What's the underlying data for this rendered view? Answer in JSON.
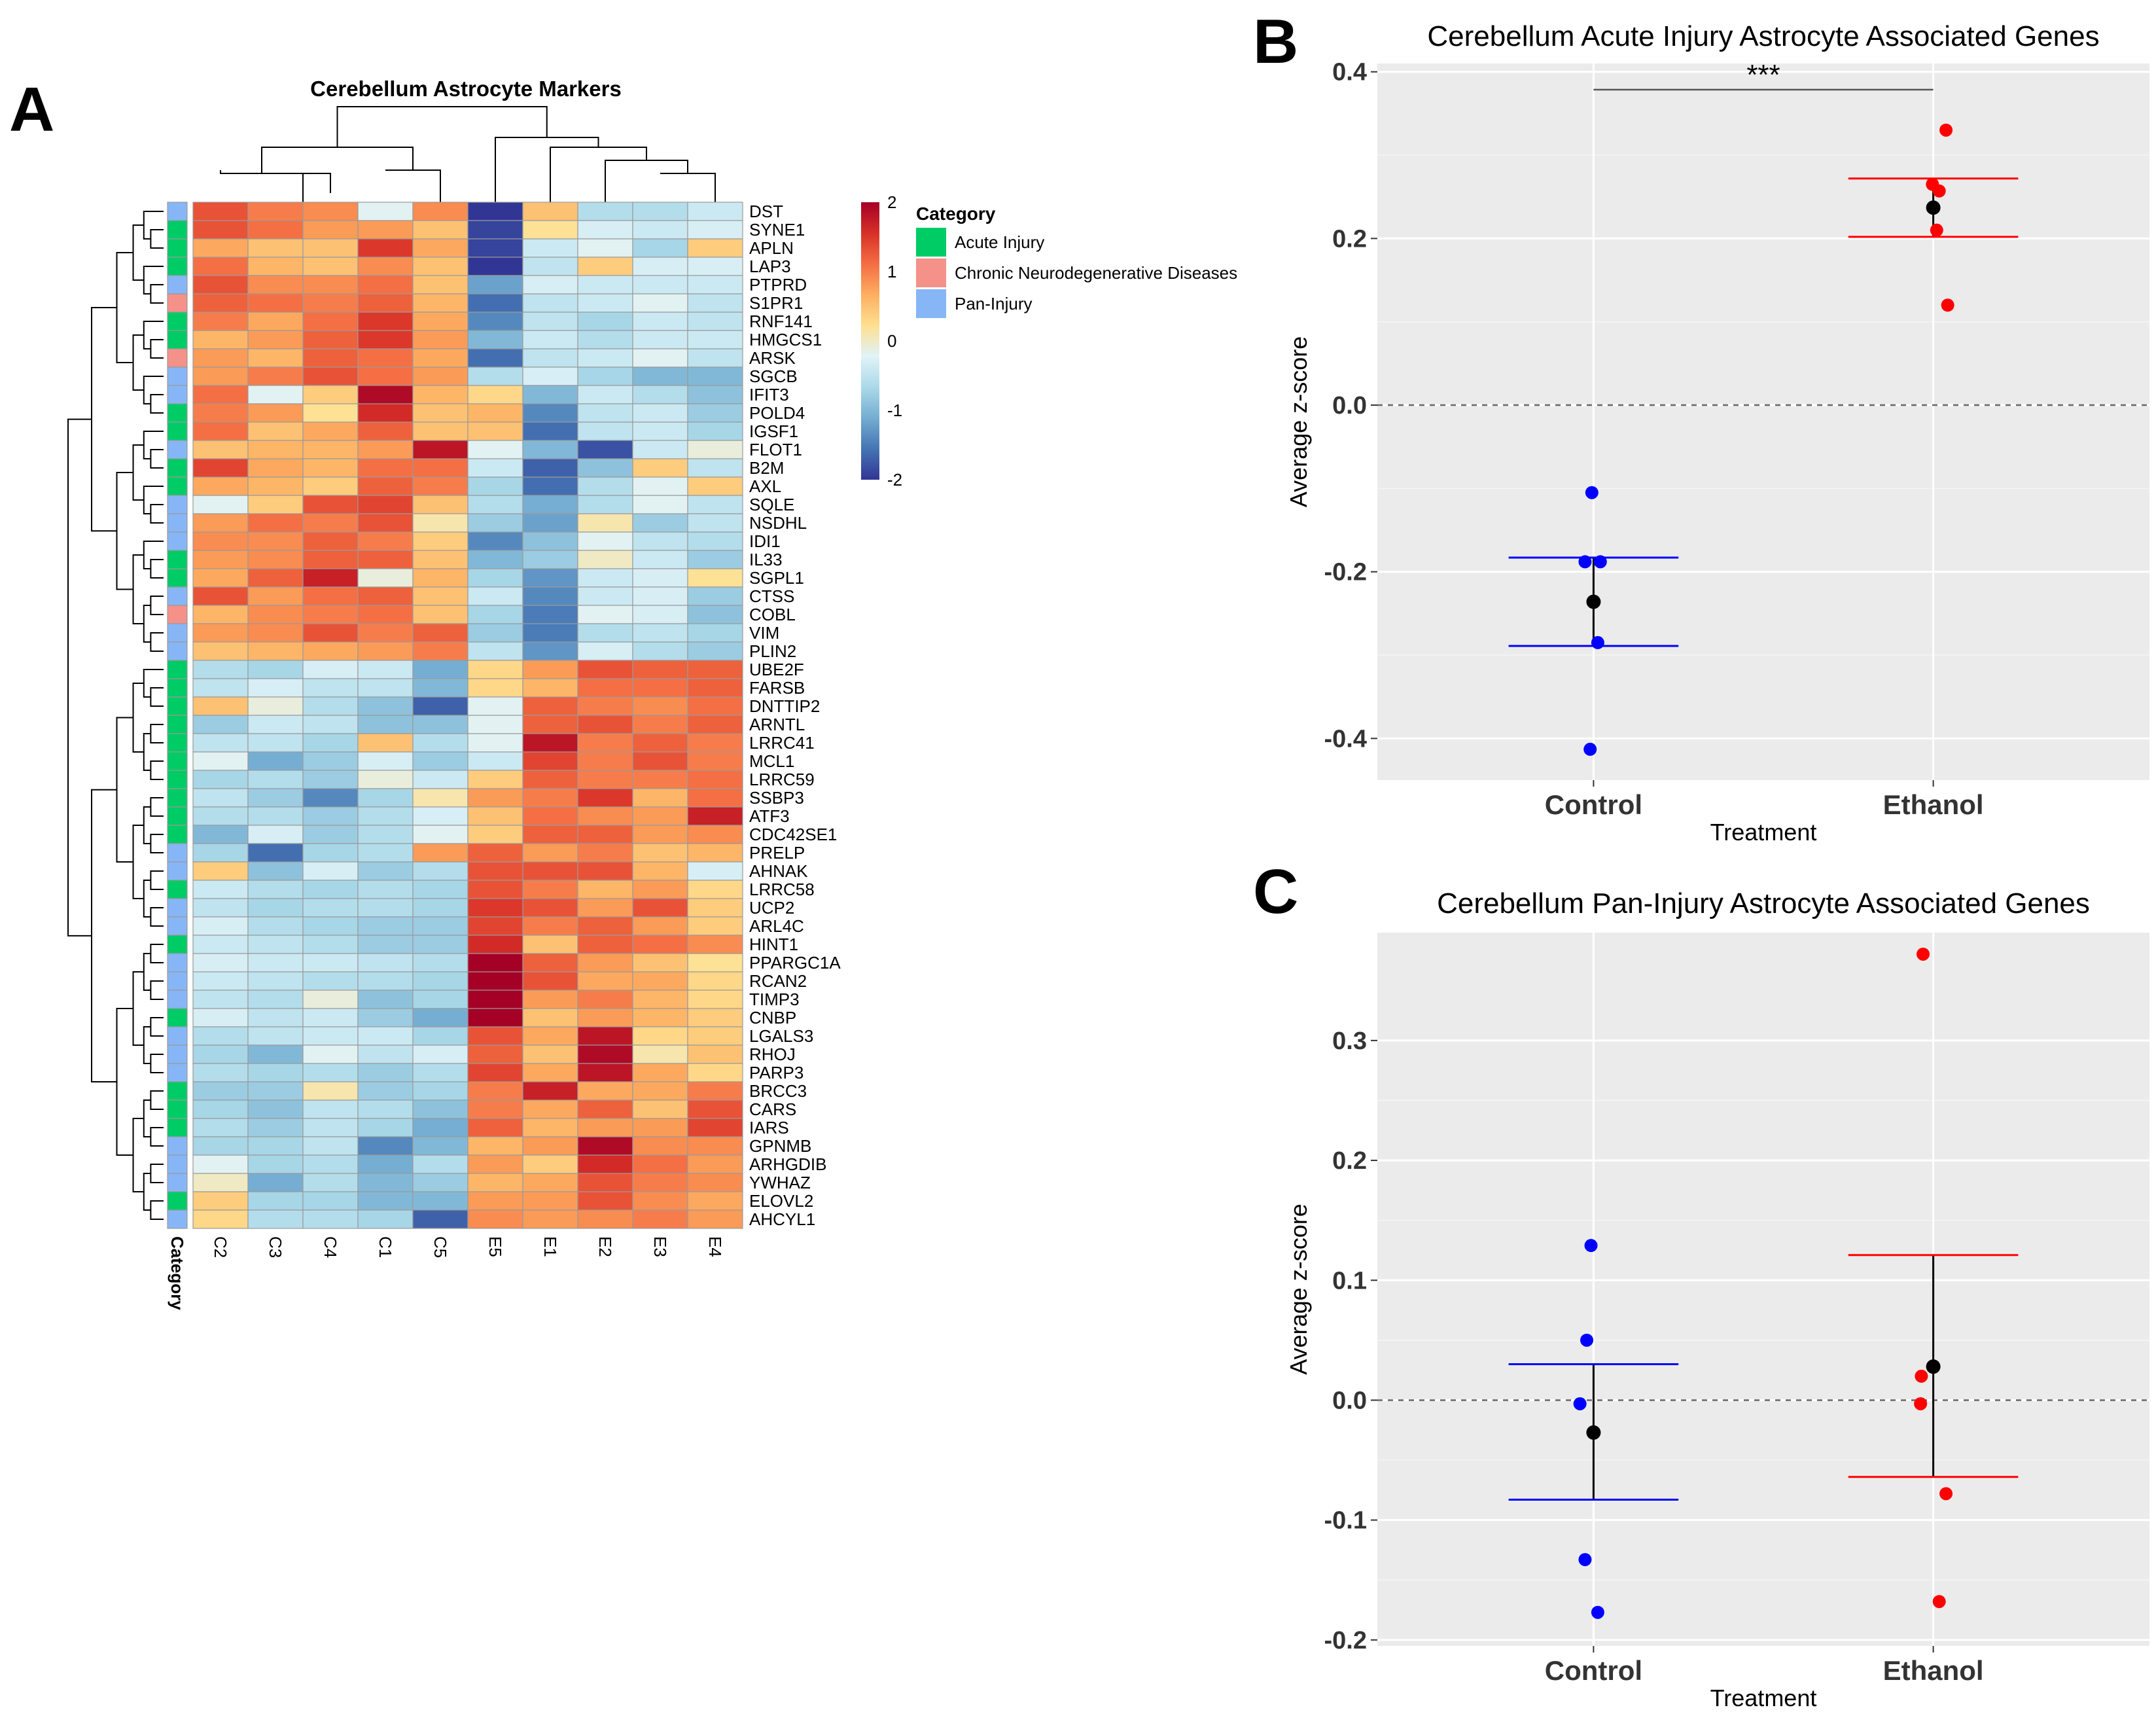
{
  "panel_labels": {
    "a": "A",
    "b": "B",
    "c": "C"
  },
  "chart_data": [
    {
      "type": "heatmap",
      "title": "Cerebellum Astrocyte Markers",
      "columns": [
        "C2",
        "C3",
        "C4",
        "C1",
        "C5",
        "E5",
        "E1",
        "E2",
        "E3",
        "E4"
      ],
      "category_axis_label": "Category",
      "rows": [
        "DST",
        "SYNE1",
        "APLN",
        "LAP3",
        "PTPRD",
        "S1PR1",
        "RNF141",
        "HMGCS1",
        "ARSK",
        "SGCB",
        "IFIT3",
        "POLD4",
        "IGSF1",
        "FLOT1",
        "B2M",
        "AXL",
        "SQLE",
        "NSDHL",
        "IDI1",
        "IL33",
        "SGPL1",
        "CTSS",
        "COBL",
        "VIM",
        "PLIN2",
        "UBE2F",
        "FARSB",
        "DNTTIP2",
        "ARNTL",
        "LRRC41",
        "MCL1",
        "LRRC59",
        "SSBP3",
        "ATF3",
        "CDC42SE1",
        "PRELP",
        "AHNAK",
        "LRRC58",
        "UCP2",
        "ARL4C",
        "HINT1",
        "PPARGC1A",
        "RCAN2",
        "TIMP3",
        "CNBP",
        "LGALS3",
        "RHOJ",
        "PARP3",
        "BRCC3",
        "CARS",
        "IARS",
        "GPNMB",
        "ARHGDIB",
        "YWHAZ",
        "ELOVL2",
        "AHCYL1"
      ],
      "row_category": [
        "P",
        "A",
        "A",
        "A",
        "P",
        "C",
        "A",
        "A",
        "C",
        "P",
        "P",
        "A",
        "A",
        "P",
        "A",
        "A",
        "P",
        "P",
        "P",
        "A",
        "A",
        "P",
        "C",
        "P",
        "P",
        "A",
        "A",
        "A",
        "A",
        "A",
        "A",
        "A",
        "A",
        "A",
        "A",
        "P",
        "P",
        "A",
        "P",
        "P",
        "A",
        "P",
        "P",
        "P",
        "A",
        "P",
        "P",
        "P",
        "A",
        "A",
        "A",
        "P",
        "P",
        "P",
        "A",
        "P"
      ],
      "values": [
        [
          1.3,
          1.0,
          0.9,
          -0.2,
          0.9,
          -2.0,
          0.5,
          -0.6,
          -0.6,
          -0.4
        ],
        [
          1.3,
          1.1,
          0.8,
          0.8,
          0.5,
          -1.9,
          0.2,
          -0.3,
          -0.4,
          -0.3
        ],
        [
          0.7,
          0.5,
          0.5,
          1.5,
          0.7,
          -1.9,
          -0.4,
          -0.2,
          -0.7,
          0.4
        ],
        [
          1.1,
          0.6,
          0.5,
          0.9,
          0.5,
          -2.1,
          -0.5,
          0.4,
          -0.3,
          -0.3
        ],
        [
          1.3,
          0.9,
          0.9,
          1.1,
          0.5,
          -1.2,
          -0.3,
          -0.4,
          -0.4,
          -0.4
        ],
        [
          1.2,
          1.1,
          1.0,
          1.2,
          0.6,
          -1.6,
          -0.5,
          -0.4,
          -0.2,
          -0.5
        ],
        [
          1.0,
          0.7,
          1.1,
          1.5,
          0.7,
          -1.4,
          -0.5,
          -0.7,
          -0.4,
          -0.5
        ],
        [
          0.6,
          0.8,
          1.2,
          1.5,
          0.8,
          -1.0,
          -0.4,
          -0.6,
          -0.4,
          -0.4
        ],
        [
          0.8,
          0.6,
          1.2,
          1.1,
          0.7,
          -1.6,
          -0.5,
          -0.4,
          -0.2,
          -0.5
        ],
        [
          0.8,
          1.0,
          1.3,
          1.1,
          0.8,
          -0.6,
          -0.3,
          -0.7,
          -1.0,
          -1.0
        ],
        [
          1.1,
          -0.2,
          0.4,
          1.9,
          0.6,
          0.3,
          -1.0,
          -0.4,
          -0.6,
          -0.9
        ],
        [
          1.0,
          0.8,
          0.2,
          1.6,
          0.5,
          0.6,
          -1.4,
          -0.5,
          -0.4,
          -0.8
        ],
        [
          1.1,
          0.5,
          0.7,
          1.2,
          0.5,
          0.5,
          -1.6,
          -0.5,
          -0.4,
          -0.7
        ],
        [
          0.5,
          0.6,
          0.6,
          0.8,
          1.8,
          -0.2,
          -1.0,
          -1.8,
          -0.4,
          -0.1
        ],
        [
          1.4,
          0.7,
          0.6,
          1.1,
          1.1,
          -0.4,
          -1.7,
          -0.9,
          0.4,
          -0.5
        ],
        [
          0.7,
          0.6,
          0.4,
          1.2,
          1.0,
          -0.7,
          -1.6,
          -0.6,
          -0.2,
          0.4
        ],
        [
          -0.2,
          0.4,
          1.3,
          1.4,
          0.5,
          -0.6,
          -1.1,
          -0.6,
          -0.2,
          -0.5
        ],
        [
          0.8,
          1.1,
          1.0,
          1.3,
          0.1,
          -0.8,
          -1.2,
          0.1,
          -0.8,
          -0.5
        ],
        [
          0.9,
          0.9,
          1.2,
          1.0,
          0.4,
          -1.4,
          -0.9,
          -0.2,
          -0.5,
          -0.6
        ],
        [
          0.8,
          0.9,
          1.2,
          1.2,
          0.5,
          -1.0,
          -0.8,
          0.0,
          -0.4,
          -0.8
        ],
        [
          0.7,
          1.2,
          1.7,
          -0.1,
          0.6,
          -0.7,
          -1.3,
          -0.4,
          -0.3,
          0.2
        ],
        [
          1.3,
          0.8,
          1.1,
          1.2,
          0.5,
          -0.4,
          -1.4,
          -0.4,
          -0.3,
          -0.8
        ],
        [
          0.6,
          0.9,
          1.0,
          1.1,
          0.5,
          -0.7,
          -1.5,
          -0.2,
          -0.3,
          -0.9
        ],
        [
          0.8,
          0.9,
          1.3,
          1.0,
          1.2,
          -0.8,
          -1.5,
          -0.6,
          -0.5,
          -0.7
        ],
        [
          0.5,
          0.6,
          0.7,
          0.8,
          1.0,
          -0.5,
          -1.3,
          -0.3,
          -0.6,
          -0.8
        ],
        [
          -0.6,
          -0.7,
          -0.3,
          -0.4,
          -1.1,
          0.3,
          0.8,
          1.3,
          1.2,
          1.2
        ],
        [
          -0.5,
          -0.3,
          -0.5,
          -0.5,
          -1.0,
          0.3,
          0.6,
          1.1,
          1.1,
          1.2
        ],
        [
          0.5,
          -0.1,
          -0.6,
          -0.9,
          -1.7,
          -0.2,
          1.2,
          1.0,
          0.9,
          1.1
        ],
        [
          -0.8,
          -0.4,
          -0.5,
          -0.9,
          -0.9,
          -0.2,
          1.2,
          1.3,
          1.0,
          1.2
        ],
        [
          -0.5,
          -0.5,
          -0.7,
          0.5,
          -0.6,
          -0.2,
          1.8,
          1.0,
          1.2,
          1.0
        ],
        [
          -0.2,
          -1.1,
          -0.8,
          -0.3,
          -0.8,
          -0.4,
          1.4,
          1.0,
          1.3,
          1.0
        ],
        [
          -0.7,
          -0.6,
          -0.8,
          -0.1,
          -0.4,
          0.4,
          1.2,
          1.0,
          1.0,
          1.1
        ],
        [
          -0.5,
          -0.8,
          -1.4,
          -0.7,
          0.1,
          0.8,
          1.0,
          1.5,
          0.6,
          1.1
        ],
        [
          -0.6,
          -0.6,
          -0.8,
          -0.6,
          -0.3,
          0.5,
          1.1,
          0.9,
          0.8,
          1.7
        ],
        [
          -1.0,
          -0.3,
          -0.8,
          -0.6,
          -0.2,
          0.4,
          1.2,
          1.2,
          0.8,
          0.9
        ],
        [
          -0.7,
          -1.6,
          -0.7,
          -0.6,
          0.8,
          1.2,
          0.8,
          1.0,
          0.5,
          0.6
        ],
        [
          0.4,
          -0.9,
          -0.3,
          -0.8,
          -0.6,
          1.3,
          1.3,
          1.3,
          0.6,
          -0.3
        ],
        [
          -0.4,
          -0.6,
          -0.7,
          -0.6,
          -0.7,
          1.3,
          1.0,
          0.6,
          0.8,
          0.3
        ],
        [
          -0.5,
          -0.7,
          -0.6,
          -0.6,
          -0.7,
          1.5,
          1.3,
          0.8,
          1.3,
          0.4
        ],
        [
          -0.3,
          -0.6,
          -0.7,
          -0.8,
          -0.8,
          1.4,
          1.0,
          1.2,
          0.8,
          0.4
        ],
        [
          -0.4,
          -0.5,
          -0.6,
          -0.8,
          -0.8,
          1.6,
          0.5,
          1.2,
          1.1,
          0.9
        ],
        [
          -0.3,
          -0.4,
          -0.4,
          -0.5,
          -0.6,
          2.0,
          1.2,
          0.8,
          0.5,
          0.2
        ],
        [
          -0.4,
          -0.5,
          -0.6,
          -0.6,
          -0.7,
          2.0,
          1.3,
          0.7,
          0.7,
          0.3
        ],
        [
          -0.5,
          -0.6,
          -0.1,
          -0.9,
          -0.7,
          2.0,
          0.8,
          1.0,
          0.6,
          0.3
        ],
        [
          -0.3,
          -0.5,
          -0.4,
          -0.8,
          -1.1,
          2.0,
          0.5,
          0.8,
          0.6,
          0.4
        ],
        [
          -0.6,
          -0.5,
          -0.4,
          -0.4,
          -0.7,
          1.3,
          0.7,
          1.8,
          0.3,
          0.4
        ],
        [
          -0.7,
          -1.0,
          -0.2,
          -0.5,
          -0.3,
          1.2,
          0.5,
          1.9,
          0.1,
          0.5
        ],
        [
          -0.6,
          -0.7,
          -0.6,
          -0.8,
          -0.6,
          1.4,
          0.7,
          1.8,
          0.7,
          0.3
        ],
        [
          -0.8,
          -0.8,
          0.1,
          -0.8,
          -0.7,
          1.0,
          1.7,
          0.7,
          0.7,
          1.0
        ],
        [
          -0.7,
          -0.9,
          -0.5,
          -0.6,
          -0.9,
          1.0,
          0.7,
          1.2,
          0.5,
          1.3
        ],
        [
          -0.6,
          -0.8,
          -0.5,
          -0.7,
          -1.1,
          1.2,
          0.6,
          0.8,
          0.8,
          1.4
        ],
        [
          -0.7,
          -0.7,
          -0.5,
          -1.4,
          -1.0,
          0.6,
          0.8,
          1.9,
          0.9,
          0.9
        ],
        [
          -0.2,
          -0.7,
          -0.6,
          -1.1,
          -0.6,
          0.8,
          0.4,
          1.6,
          1.1,
          0.8
        ],
        [
          0.0,
          -1.1,
          -0.6,
          -1.0,
          -0.8,
          0.6,
          0.7,
          1.3,
          1.0,
          0.9
        ],
        [
          0.4,
          -0.7,
          -0.7,
          -1.0,
          -1.0,
          0.8,
          0.8,
          1.3,
          0.9,
          0.7
        ],
        [
          0.3,
          -0.6,
          -0.6,
          -0.7,
          -1.7,
          0.9,
          0.8,
          0.9,
          1.0,
          0.8
        ]
      ],
      "color_scale": {
        "ticks": [
          2,
          1,
          0,
          -1,
          -2
        ],
        "min": -2,
        "max": 2,
        "colors": [
          "#313695",
          "#4575b4",
          "#74add1",
          "#abd9e9",
          "#e0f3f8",
          "#fee090",
          "#fdae61",
          "#f46d43",
          "#d73027",
          "#a50026"
        ]
      },
      "legend": {
        "title": "Category",
        "items": [
          {
            "key": "A",
            "label": "Acute Injury",
            "color": "#00cc66"
          },
          {
            "key": "C",
            "label": "Chronic Neurodegenerative Diseases",
            "color": "#f49189"
          },
          {
            "key": "P",
            "label": "Pan-Injury",
            "color": "#86b6f6"
          }
        ]
      }
    },
    {
      "type": "scatter",
      "title": "Cerebellum Acute Injury Astrocyte Associated Genes",
      "xlabel": "Treatment",
      "ylabel": "Average z-score",
      "categories": [
        "Control",
        "Ethanol"
      ],
      "ylim": [
        -0.45,
        0.41
      ],
      "yticks": [
        0.4,
        0.2,
        0.0,
        -0.2,
        -0.4
      ],
      "ytick_labels": [
        "0.4",
        "0.2",
        "0.0",
        "-0.2",
        "-0.4"
      ],
      "significance": "***",
      "series": [
        {
          "name": "Control",
          "color": "#0000ff",
          "points": [
            -0.105,
            -0.188,
            -0.188,
            -0.285,
            -0.413
          ],
          "jitter": [
            -0.02,
            -0.1,
            0.08,
            0.05,
            -0.04
          ],
          "mean": -0.236,
          "upper": -0.183,
          "lower": -0.289
        },
        {
          "name": "Ethanol",
          "color": "#ff0000",
          "points": [
            0.33,
            0.265,
            0.257,
            0.21,
            0.12
          ],
          "jitter": [
            0.15,
            -0.01,
            0.07,
            0.04,
            0.17
          ],
          "mean": 0.237,
          "upper": 0.272,
          "lower": 0.202
        }
      ]
    },
    {
      "type": "scatter",
      "title": "Cerebellum Pan-Injury Astrocyte Associated Genes",
      "xlabel": "Treatment",
      "ylabel": "Average z-score",
      "categories": [
        "Control",
        "Ethanol"
      ],
      "ylim": [
        -0.205,
        0.39
      ],
      "yticks": [
        0.3,
        0.2,
        0.1,
        0.0,
        -0.1,
        -0.2
      ],
      "ytick_labels": [
        "0.3",
        "0.2",
        "0.1",
        "0.0",
        "-0.1",
        "-0.2"
      ],
      "series": [
        {
          "name": "Control",
          "color": "#0000ff",
          "points": [
            0.129,
            0.05,
            -0.003,
            -0.133,
            -0.177
          ],
          "jitter": [
            -0.03,
            -0.08,
            -0.16,
            -0.1,
            0.05
          ],
          "mean": -0.027,
          "upper": 0.03,
          "lower": -0.083
        },
        {
          "name": "Ethanol",
          "color": "#ff0000",
          "points": [
            0.372,
            0.02,
            -0.003,
            -0.078,
            -0.168
          ],
          "jitter": [
            -0.12,
            -0.14,
            -0.15,
            0.15,
            0.07
          ],
          "mean": 0.028,
          "upper": 0.121,
          "lower": -0.064
        }
      ]
    }
  ]
}
